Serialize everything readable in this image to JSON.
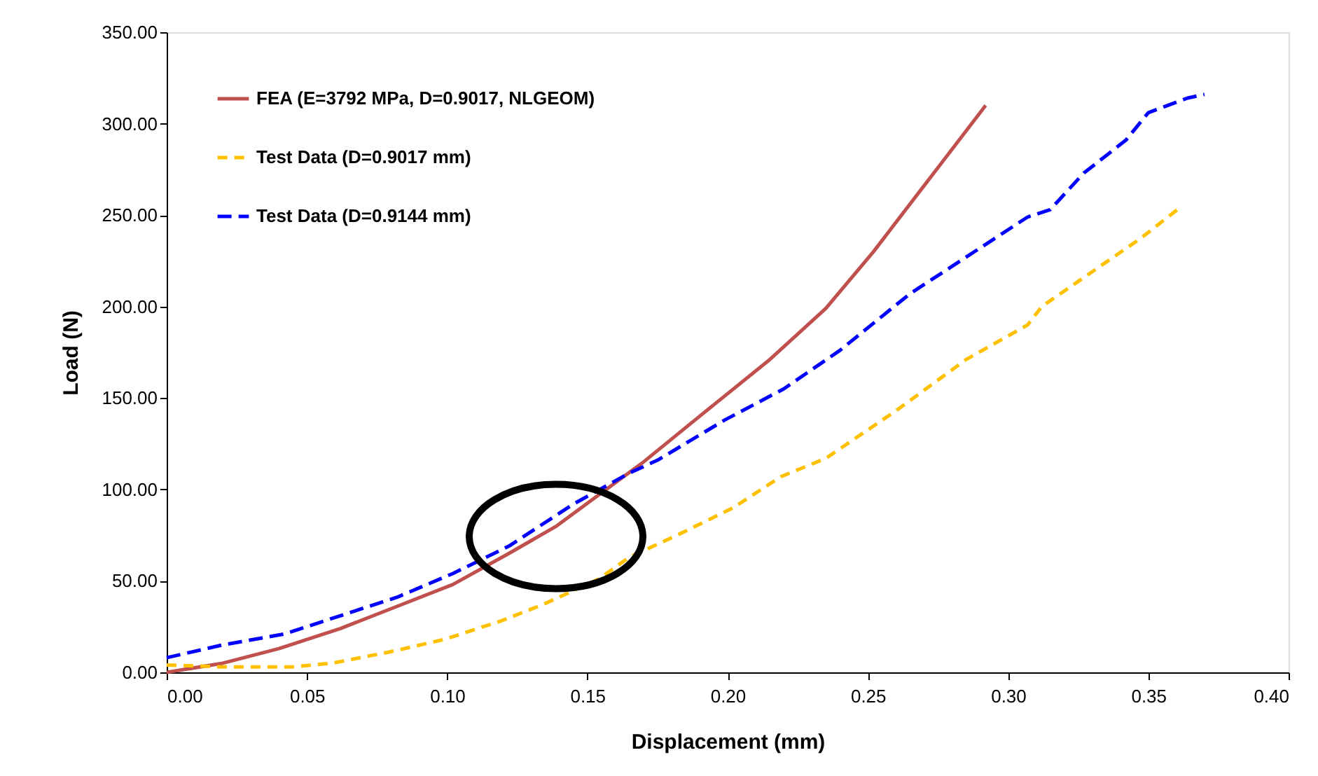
{
  "chart_data": {
    "type": "line",
    "xlabel": "Displacement (mm)",
    "ylabel": "Load (N)",
    "xlim": [
      0,
      0.4
    ],
    "ylim": [
      0,
      350
    ],
    "xticks": [
      {
        "value": 0,
        "label": "0.00"
      },
      {
        "value": 0.05,
        "label": "0.05"
      },
      {
        "value": 0.1,
        "label": "0.10"
      },
      {
        "value": 0.15,
        "label": "0.15"
      },
      {
        "value": 0.2,
        "label": "0.20"
      },
      {
        "value": 0.25,
        "label": "0.25"
      },
      {
        "value": 0.3,
        "label": "0.30"
      },
      {
        "value": 0.35,
        "label": "0.35"
      },
      {
        "value": 0.4,
        "label": "0.40"
      }
    ],
    "yticks": [
      {
        "value": 0,
        "label": "0.00"
      },
      {
        "value": 50,
        "label": "50.00"
      },
      {
        "value": 100,
        "label": "100.00"
      },
      {
        "value": 150,
        "label": "150.00"
      },
      {
        "value": 200,
        "label": "200.00"
      },
      {
        "value": 250,
        "label": "250.00"
      },
      {
        "value": 300,
        "label": "300.00"
      },
      {
        "value": 350,
        "label": "350.00"
      }
    ],
    "grid": false,
    "legend": "top left",
    "marker": "none",
    "series": [
      {
        "name": "FEA (E=3792 MPa, D=0.9017, NLGEOM)",
        "color": "#c0504d",
        "line_style": "solid",
        "x": [
          0,
          0.02,
          0.04,
          0.062,
          0.082,
          0.102,
          0.122,
          0.139,
          0.154,
          0.17,
          0.19,
          0.215,
          0.235,
          0.252,
          0.272,
          0.292
        ],
        "values": [
          0,
          5,
          13,
          24,
          36,
          48,
          65,
          80,
          97,
          115,
          140,
          171,
          199,
          230,
          270,
          310
        ]
      },
      {
        "name": "Test Data (D=0.9017 mm)",
        "color": "#ffc000",
        "line_style": "dashed",
        "x": [
          0,
          0.02,
          0.045,
          0.059,
          0.079,
          0.099,
          0.119,
          0.134,
          0.154,
          0.165,
          0.182,
          0.202,
          0.219,
          0.235,
          0.26,
          0.285,
          0.307,
          0.312,
          0.329,
          0.347,
          0.362
        ],
        "values": [
          4,
          3,
          3,
          5,
          11,
          18,
          28,
          37,
          51,
          63,
          75,
          90,
          107,
          117,
          143,
          171,
          190,
          200,
          218,
          237,
          255
        ]
      },
      {
        "name": "Test Data (D=0.9144 mm)",
        "color": "#0000ff",
        "line_style": "dashed",
        "x": [
          0,
          0.02,
          0.042,
          0.062,
          0.082,
          0.102,
          0.122,
          0.145,
          0.165,
          0.175,
          0.199,
          0.22,
          0.24,
          0.265,
          0.285,
          0.307,
          0.315,
          0.327,
          0.342,
          0.35,
          0.364,
          0.37
        ],
        "values": [
          8,
          15,
          21,
          31,
          41,
          54,
          69,
          92,
          109,
          116,
          138,
          155,
          176,
          207,
          227,
          249,
          253,
          273,
          291,
          306,
          314,
          316
        ]
      }
    ]
  }
}
